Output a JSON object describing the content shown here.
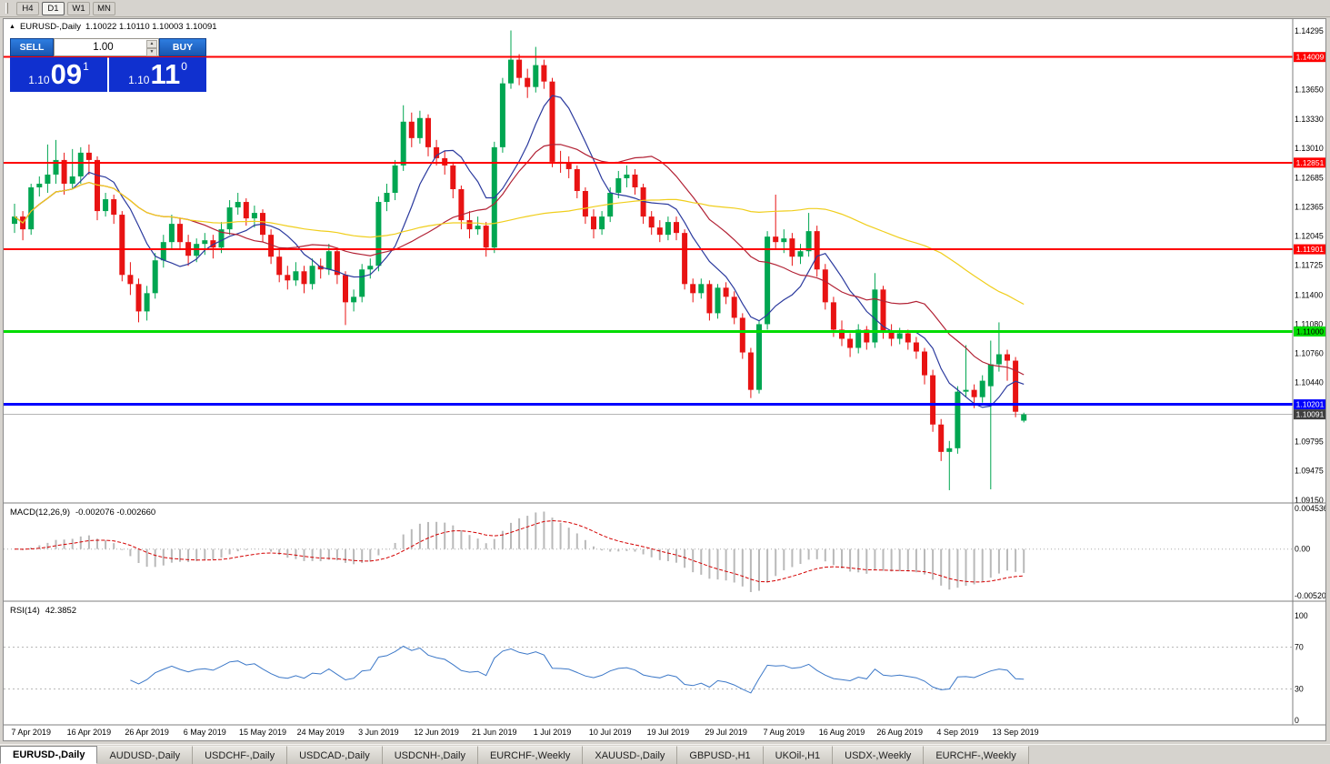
{
  "toolbar": {
    "timeframes": [
      "H4",
      "D1",
      "W1",
      "MN"
    ],
    "active": "D1"
  },
  "chart_header": {
    "symbol": "EURUSD-,Daily",
    "ohlc": "1.10022 1.10110 1.10003 1.10091"
  },
  "trade_panel": {
    "sell_label": "SELL",
    "buy_label": "BUY",
    "volume": "1.00",
    "sell_price": {
      "base": "1.10",
      "pips": "09",
      "frac": "1"
    },
    "buy_price": {
      "base": "1.10",
      "pips": "11",
      "frac": "0"
    }
  },
  "chart_data": {
    "type": "candlestick",
    "symbol": "EURUSD-",
    "timeframe": "Daily",
    "title": "EURUSD-,Daily 1.10022 1.10110 1.10003 1.10091",
    "colors": {
      "up": "#00A651",
      "down": "#E81313"
    },
    "candles": [
      [
        1.1218,
        1.124,
        1.1208,
        1.1226
      ],
      [
        1.1226,
        1.1232,
        1.12,
        1.1212
      ],
      [
        1.1212,
        1.1262,
        1.1206,
        1.1258
      ],
      [
        1.1258,
        1.127,
        1.1248,
        1.1262
      ],
      [
        1.1262,
        1.1305,
        1.1252,
        1.1272
      ],
      [
        1.1272,
        1.131,
        1.1262,
        1.1288
      ],
      [
        1.1288,
        1.1296,
        1.125,
        1.1262
      ],
      [
        1.1262,
        1.13,
        1.1256,
        1.127
      ],
      [
        1.127,
        1.1302,
        1.1262,
        1.1296
      ],
      [
        1.1296,
        1.1305,
        1.1272,
        1.1288
      ],
      [
        1.1288,
        1.1292,
        1.1222,
        1.1232
      ],
      [
        1.1232,
        1.1252,
        1.1226,
        1.1245
      ],
      [
        1.1245,
        1.125,
        1.1218,
        1.1228
      ],
      [
        1.1228,
        1.1232,
        1.1155,
        1.1162
      ],
      [
        1.1162,
        1.1176,
        1.114,
        1.1152
      ],
      [
        1.1152,
        1.1158,
        1.111,
        1.1122
      ],
      [
        1.1122,
        1.115,
        1.1112,
        1.1142
      ],
      [
        1.1142,
        1.1186,
        1.1136,
        1.1178
      ],
      [
        1.1178,
        1.1206,
        1.117,
        1.1198
      ],
      [
        1.1198,
        1.1228,
        1.119,
        1.1218
      ],
      [
        1.1218,
        1.1224,
        1.119,
        1.1198
      ],
      [
        1.1198,
        1.1206,
        1.1172,
        1.1183
      ],
      [
        1.1183,
        1.1202,
        1.1176,
        1.1196
      ],
      [
        1.1196,
        1.1208,
        1.1184,
        1.12
      ],
      [
        1.12,
        1.1206,
        1.118,
        1.1192
      ],
      [
        1.1192,
        1.122,
        1.1186,
        1.1212
      ],
      [
        1.1212,
        1.1244,
        1.1206,
        1.1236
      ],
      [
        1.1236,
        1.1252,
        1.1228,
        1.1242
      ],
      [
        1.1242,
        1.1246,
        1.1216,
        1.1224
      ],
      [
        1.1224,
        1.1238,
        1.1214,
        1.123
      ],
      [
        1.123,
        1.1234,
        1.1198,
        1.1206
      ],
      [
        1.1206,
        1.1212,
        1.1174,
        1.1182
      ],
      [
        1.1182,
        1.119,
        1.1154,
        1.1162
      ],
      [
        1.1162,
        1.1172,
        1.1146,
        1.1156
      ],
      [
        1.1156,
        1.1176,
        1.115,
        1.1166
      ],
      [
        1.1166,
        1.1172,
        1.1142,
        1.1152
      ],
      [
        1.1152,
        1.118,
        1.1146,
        1.1172
      ],
      [
        1.1172,
        1.118,
        1.1158,
        1.1168
      ],
      [
        1.1168,
        1.1196,
        1.1162,
        1.1188
      ],
      [
        1.1188,
        1.1192,
        1.1152,
        1.1162
      ],
      [
        1.1162,
        1.1166,
        1.1107,
        1.1132
      ],
      [
        1.1132,
        1.1146,
        1.1122,
        1.1138
      ],
      [
        1.1138,
        1.1174,
        1.1132,
        1.1168
      ],
      [
        1.1168,
        1.118,
        1.1158,
        1.1172
      ],
      [
        1.1172,
        1.1248,
        1.1166,
        1.1242
      ],
      [
        1.1242,
        1.1262,
        1.1232,
        1.1252
      ],
      [
        1.1252,
        1.1288,
        1.1244,
        1.1282
      ],
      [
        1.1282,
        1.1348,
        1.1276,
        1.133
      ],
      [
        1.133,
        1.134,
        1.1302,
        1.1312
      ],
      [
        1.1312,
        1.1342,
        1.1306,
        1.1334
      ],
      [
        1.1334,
        1.1338,
        1.1292,
        1.1302
      ],
      [
        1.1302,
        1.131,
        1.1282,
        1.129
      ],
      [
        1.129,
        1.1298,
        1.1272,
        1.1282
      ],
      [
        1.1282,
        1.1286,
        1.1246,
        1.1256
      ],
      [
        1.1256,
        1.126,
        1.1212,
        1.1222
      ],
      [
        1.1222,
        1.1232,
        1.1202,
        1.1212
      ],
      [
        1.1212,
        1.1226,
        1.1206,
        1.1216
      ],
      [
        1.1216,
        1.122,
        1.1182,
        1.1192
      ],
      [
        1.1192,
        1.1308,
        1.1186,
        1.1302
      ],
      [
        1.1302,
        1.1378,
        1.1296,
        1.1372
      ],
      [
        1.1372,
        1.143,
        1.1366,
        1.1398
      ],
      [
        1.1398,
        1.1404,
        1.137,
        1.1378
      ],
      [
        1.1378,
        1.1388,
        1.1356,
        1.1368
      ],
      [
        1.1368,
        1.1412,
        1.1362,
        1.1392
      ],
      [
        1.1392,
        1.1398,
        1.1366,
        1.1374
      ],
      [
        1.1374,
        1.1378,
        1.128,
        1.1286
      ],
      [
        1.1286,
        1.1298,
        1.1274,
        1.1284
      ],
      [
        1.1284,
        1.1292,
        1.1268,
        1.1278
      ],
      [
        1.1278,
        1.1282,
        1.1246,
        1.1254
      ],
      [
        1.1254,
        1.1258,
        1.1218,
        1.1226
      ],
      [
        1.1226,
        1.1234,
        1.1202,
        1.1212
      ],
      [
        1.1212,
        1.1232,
        1.1206,
        1.1226
      ],
      [
        1.1226,
        1.1258,
        1.122,
        1.1252
      ],
      [
        1.1252,
        1.1276,
        1.1246,
        1.1268
      ],
      [
        1.1268,
        1.1282,
        1.1258,
        1.1272
      ],
      [
        1.1272,
        1.1278,
        1.125,
        1.1258
      ],
      [
        1.1258,
        1.1262,
        1.1218,
        1.1226
      ],
      [
        1.1226,
        1.1232,
        1.1206,
        1.1214
      ],
      [
        1.1214,
        1.1222,
        1.1198,
        1.1206
      ],
      [
        1.1206,
        1.1226,
        1.12,
        1.122
      ],
      [
        1.122,
        1.1226,
        1.12,
        1.1208
      ],
      [
        1.1208,
        1.1212,
        1.1146,
        1.1152
      ],
      [
        1.1152,
        1.1158,
        1.1132,
        1.1142
      ],
      [
        1.1142,
        1.1158,
        1.1136,
        1.1152
      ],
      [
        1.1152,
        1.1156,
        1.1112,
        1.112
      ],
      [
        1.112,
        1.1152,
        1.1114,
        1.1148
      ],
      [
        1.1148,
        1.1154,
        1.113,
        1.1138
      ],
      [
        1.1138,
        1.1144,
        1.1108,
        1.1115
      ],
      [
        1.1115,
        1.112,
        1.107,
        1.1077
      ],
      [
        1.1077,
        1.1082,
        1.1027,
        1.1036
      ],
      [
        1.1036,
        1.1112,
        1.1032,
        1.1108
      ],
      [
        1.1108,
        1.121,
        1.1102,
        1.1204
      ],
      [
        1.1204,
        1.125,
        1.119,
        1.1198
      ],
      [
        1.1198,
        1.1212,
        1.1186,
        1.1202
      ],
      [
        1.1202,
        1.1208,
        1.1172,
        1.1182
      ],
      [
        1.1182,
        1.1196,
        1.1174,
        1.1188
      ],
      [
        1.1188,
        1.123,
        1.1182,
        1.121
      ],
      [
        1.121,
        1.1216,
        1.116,
        1.1168
      ],
      [
        1.1168,
        1.1174,
        1.1124,
        1.1132
      ],
      [
        1.1132,
        1.1138,
        1.1094,
        1.1102
      ],
      [
        1.1102,
        1.1112,
        1.1084,
        1.1092
      ],
      [
        1.1092,
        1.1098,
        1.1072,
        1.1082
      ],
      [
        1.1082,
        1.1108,
        1.1076,
        1.1102
      ],
      [
        1.1102,
        1.1106,
        1.108,
        1.1088
      ],
      [
        1.1088,
        1.1164,
        1.1082,
        1.1146
      ],
      [
        1.1146,
        1.115,
        1.1092,
        1.11
      ],
      [
        1.11,
        1.1108,
        1.1084,
        1.1092
      ],
      [
        1.1092,
        1.1104,
        1.1086,
        1.1098
      ],
      [
        1.1098,
        1.1102,
        1.108,
        1.1088
      ],
      [
        1.1088,
        1.1094,
        1.107,
        1.1078
      ],
      [
        1.1078,
        1.1082,
        1.1042,
        1.1052
      ],
      [
        1.1052,
        1.1058,
        1.099,
        1.0998
      ],
      [
        1.0998,
        1.1004,
        1.0958,
        1.0968
      ],
      [
        1.0968,
        1.098,
        1.0926,
        1.0972
      ],
      [
        1.0972,
        1.104,
        1.0966,
        1.1034
      ],
      [
        1.1034,
        1.1085,
        1.1028,
        1.1036
      ],
      [
        1.1036,
        1.1042,
        1.1016,
        1.1028
      ],
      [
        1.1028,
        1.1052,
        1.1022,
        1.1046
      ],
      [
        1.104,
        1.109,
        1.0927,
        1.1064
      ],
      [
        1.1064,
        1.111,
        1.1056,
        1.1075
      ],
      [
        1.1075,
        1.108,
        1.1046,
        1.1068
      ],
      [
        1.1068,
        1.1072,
        1.1006,
        1.1012
      ],
      [
        1.10022,
        1.1011,
        1.10003,
        1.10091
      ]
    ],
    "date_labels": [
      {
        "i": 2,
        "t": "7 Apr 2019"
      },
      {
        "i": 9,
        "t": "16 Apr 2019"
      },
      {
        "i": 16,
        "t": "26 Apr 2019"
      },
      {
        "i": 23,
        "t": "6 May 2019"
      },
      {
        "i": 30,
        "t": "15 May 2019"
      },
      {
        "i": 37,
        "t": "24 May 2019"
      },
      {
        "i": 44,
        "t": "3 Jun 2019"
      },
      {
        "i": 51,
        "t": "12 Jun 2019"
      },
      {
        "i": 58,
        "t": "21 Jun 2019"
      },
      {
        "i": 65,
        "t": "1 Jul 2019"
      },
      {
        "i": 72,
        "t": "10 Jul 2019"
      },
      {
        "i": 79,
        "t": "19 Jul 2019"
      },
      {
        "i": 86,
        "t": "29 Jul 2019"
      },
      {
        "i": 93,
        "t": "7 Aug 2019"
      },
      {
        "i": 100,
        "t": "16 Aug 2019"
      },
      {
        "i": 107,
        "t": "26 Aug 2019"
      },
      {
        "i": 114,
        "t": "4 Sep 2019"
      },
      {
        "i": 121,
        "t": "13 Sep 2019"
      }
    ],
    "price_axis_labels": [
      1.14295,
      1.13985,
      1.1365,
      1.1333,
      1.1301,
      1.12685,
      1.12365,
      1.12045,
      1.11725,
      1.114,
      1.1108,
      1.1076,
      1.1044,
      1.09795,
      1.09475,
      1.0915
    ],
    "levels": [
      {
        "price": 1.14009,
        "label": "1.14009",
        "color": "#FE0000",
        "text_color": "#ffffff",
        "width": 2
      },
      {
        "price": 1.12851,
        "label": "1.12851",
        "color": "#FE0000",
        "text_color": "#ffffff",
        "width": 2
      },
      {
        "price": 1.11901,
        "label": "1.11901",
        "color": "#FE0000",
        "text_color": "#ffffff",
        "width": 2
      },
      {
        "price": 1.11,
        "label": "1.11000",
        "color": "#00DC00",
        "text_color": "#000000",
        "width": 3
      },
      {
        "price": 1.10201,
        "label": "1.10201",
        "color": "#0000FE",
        "text_color": "#ffffff",
        "width": 3
      }
    ],
    "current": {
      "price": 1.10091,
      "label": "1.10091",
      "line_color": "#b4b4b4",
      "tag_color": "#3f3f3f",
      "text_color": "#ffffff"
    },
    "moving_averages": [
      {
        "period": 8,
        "color": "#2B3A9E"
      },
      {
        "period": 20,
        "color": "#B22235"
      },
      {
        "period": 55,
        "color": "#F0CE1C"
      }
    ]
  },
  "indicators": {
    "macd": {
      "name": "MACD(12,26,9)",
      "values": "-0.002076 -0.002660",
      "fast": 12,
      "slow": 26,
      "signal": 9,
      "scale_max": 0.004536,
      "scale_min": -0.005205,
      "axis_labels": [
        {
          "v": 0.004536,
          "t": "0.004536"
        },
        {
          "v": 0,
          "t": "0.00"
        },
        {
          "v": -0.005205,
          "t": "-0.005205"
        }
      ],
      "histogram_color": "#b9b9b9",
      "signal_color": "#D40000"
    },
    "rsi": {
      "name": "RSI(14)",
      "value": "42.3852",
      "period": 14,
      "levels": [
        70,
        30
      ],
      "axis_labels": [
        100,
        70,
        30,
        0
      ],
      "line_color": "#3C78C8"
    }
  },
  "tabs": [
    {
      "label": "EURUSD-,Daily",
      "active": true
    },
    {
      "label": "AUDUSD-,Daily"
    },
    {
      "label": "USDCHF-,Daily"
    },
    {
      "label": "USDCAD-,Daily"
    },
    {
      "label": "USDCNH-,Daily"
    },
    {
      "label": "EURCHF-,Weekly"
    },
    {
      "label": "XAUUSD-,Daily"
    },
    {
      "label": "GBPUSD-,H1"
    },
    {
      "label": "UKOil-,H1"
    },
    {
      "label": "USDX-,Weekly"
    },
    {
      "label": "EURCHF-,Weekly"
    }
  ]
}
